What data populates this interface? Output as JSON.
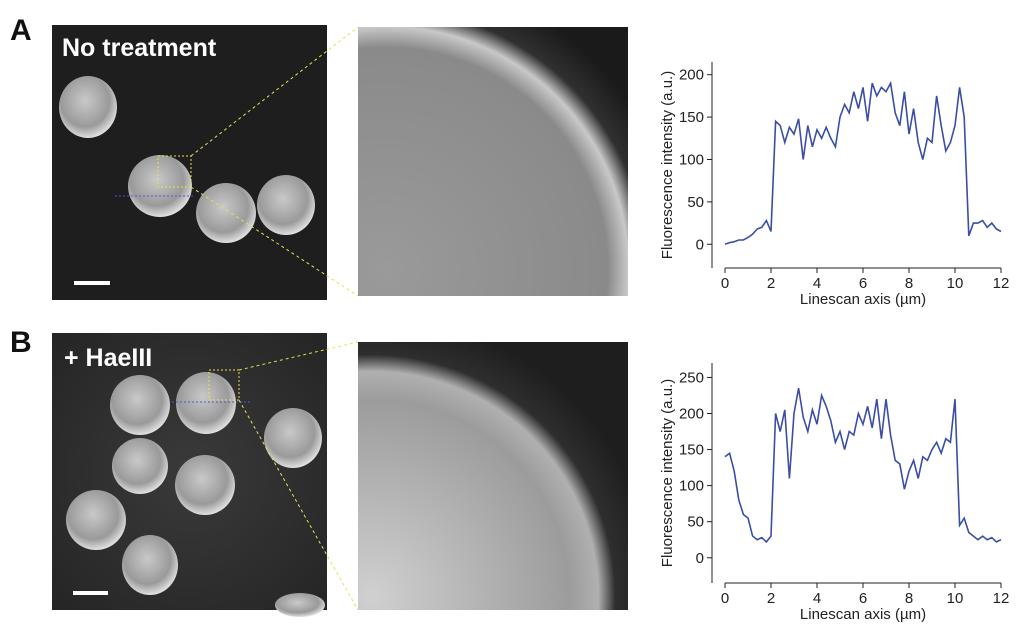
{
  "panels": [
    {
      "letter": "A",
      "image_label": "No treatment"
    },
    {
      "letter": "B",
      "image_label": "+ HaeIII"
    }
  ],
  "chart_data": [
    {
      "type": "line",
      "x_label": "Linescan axis (µm)",
      "y_label": "Fluorescence intensity (a.u.)",
      "color": "#3b4ea6",
      "x": [
        0,
        0.2,
        0.4,
        0.6,
        0.8,
        1,
        1.2,
        1.4,
        1.6,
        1.8,
        2,
        2.2,
        2.4,
        2.6,
        2.8,
        3,
        3.2,
        3.4,
        3.6,
        3.8,
        4,
        4.2,
        4.4,
        4.6,
        4.8,
        5,
        5.2,
        5.4,
        5.6,
        5.8,
        6,
        6.2,
        6.4,
        6.6,
        6.8,
        7,
        7.2,
        7.4,
        7.6,
        7.8,
        8,
        8.2,
        8.4,
        8.6,
        8.8,
        9,
        9.2,
        9.4,
        9.6,
        9.8,
        10,
        10.2,
        10.4,
        10.6,
        10.8,
        11,
        11.2,
        11.4,
        11.6,
        11.8,
        12
      ],
      "values": [
        0,
        2,
        3,
        5,
        5,
        8,
        12,
        18,
        20,
        28,
        15,
        145,
        140,
        120,
        138,
        130,
        148,
        100,
        140,
        115,
        135,
        125,
        138,
        125,
        115,
        150,
        165,
        155,
        180,
        160,
        185,
        145,
        190,
        175,
        185,
        180,
        190,
        155,
        140,
        180,
        130,
        160,
        120,
        100,
        125,
        120,
        175,
        140,
        110,
        120,
        140,
        185,
        150,
        10,
        25,
        25,
        28,
        20,
        25,
        18,
        15
      ],
      "xlim": [
        0,
        12
      ],
      "xticks": [
        0,
        2,
        4,
        6,
        8,
        10,
        12
      ],
      "ylim": [
        -28,
        215
      ],
      "yticks": [
        0,
        50,
        100,
        150,
        200
      ]
    },
    {
      "type": "line",
      "x_label": "Linescan axis (µm)",
      "y_label": "Fluorescence intensity (a.u.)",
      "color": "#3b4ea6",
      "x": [
        0,
        0.2,
        0.4,
        0.6,
        0.8,
        1,
        1.2,
        1.4,
        1.6,
        1.8,
        2,
        2.2,
        2.4,
        2.6,
        2.8,
        3,
        3.2,
        3.4,
        3.6,
        3.8,
        4,
        4.2,
        4.4,
        4.6,
        4.8,
        5,
        5.2,
        5.4,
        5.6,
        5.8,
        6,
        6.2,
        6.4,
        6.6,
        6.8,
        7,
        7.2,
        7.4,
        7.6,
        7.8,
        8,
        8.2,
        8.4,
        8.6,
        8.8,
        9,
        9.2,
        9.4,
        9.6,
        9.8,
        10,
        10.2,
        10.4,
        10.6,
        10.8,
        11,
        11.2,
        11.4,
        11.6,
        11.8,
        12
      ],
      "values": [
        140,
        145,
        120,
        80,
        60,
        55,
        30,
        25,
        28,
        22,
        30,
        200,
        175,
        205,
        110,
        200,
        235,
        195,
        175,
        205,
        185,
        225,
        210,
        190,
        160,
        175,
        150,
        175,
        170,
        200,
        185,
        210,
        180,
        220,
        165,
        220,
        170,
        135,
        130,
        95,
        120,
        135,
        110,
        140,
        135,
        150,
        160,
        145,
        165,
        160,
        220,
        45,
        55,
        35,
        30,
        25,
        30,
        25,
        28,
        22,
        25
      ],
      "xlim": [
        0,
        12
      ],
      "xticks": [
        0,
        2,
        4,
        6,
        8,
        10,
        12
      ],
      "ylim": [
        -35,
        270
      ],
      "yticks": [
        0,
        50,
        100,
        150,
        200,
        250
      ]
    }
  ]
}
